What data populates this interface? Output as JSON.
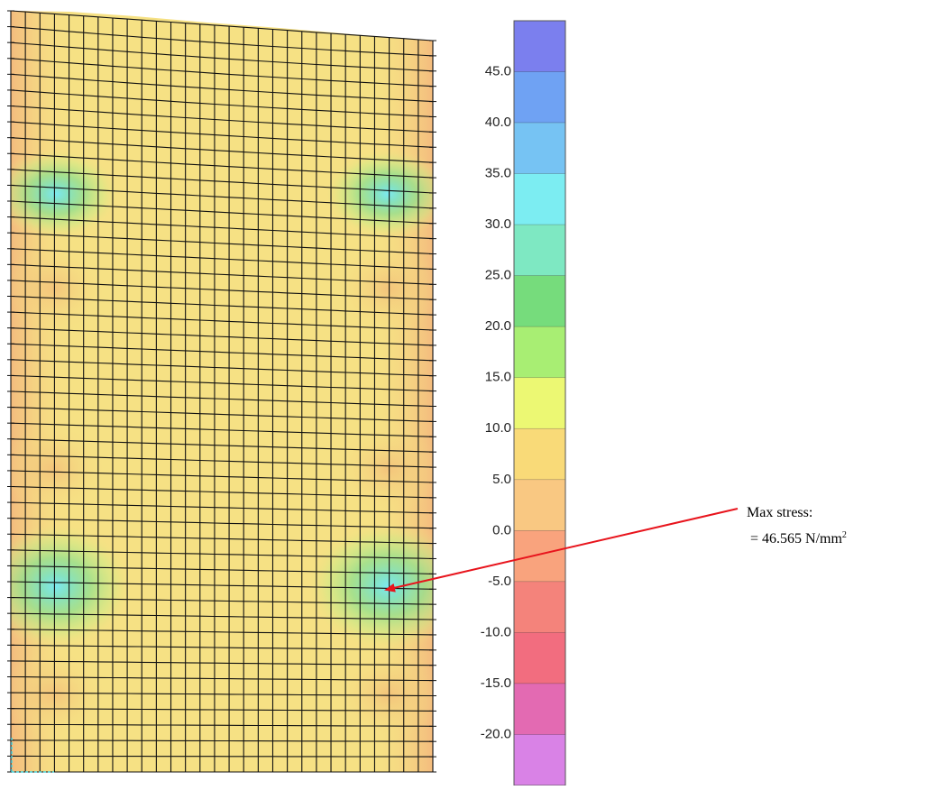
{
  "legend": {
    "labels": [
      "45.0",
      "40.0",
      "35.0",
      "30.0",
      "25.0",
      "20.0",
      "15.0",
      "10.0",
      "5.0",
      "0.0",
      "-5.0",
      "-10.0",
      "-15.0",
      "-20.0"
    ],
    "band_colors": [
      "#7b7fee",
      "#6fa2f3",
      "#76c3f3",
      "#7cedf2",
      "#7ee8c2",
      "#76dc7c",
      "#a8ee73",
      "#ecf873",
      "#f9da78",
      "#f9c882",
      "#f9a37d",
      "#f4837b",
      "#f26d7f",
      "#e36ab2",
      "#d982e6"
    ]
  },
  "mesh": {
    "base_color": "#f6e184",
    "edge_color": "#f2bf7c",
    "grid_color": "#111111"
  },
  "annotation": {
    "line1": "Max stress:",
    "line2_prefix": "=  46.565 N/mm",
    "line2_sup": "2",
    "arrow_color": "#e8141c"
  }
}
